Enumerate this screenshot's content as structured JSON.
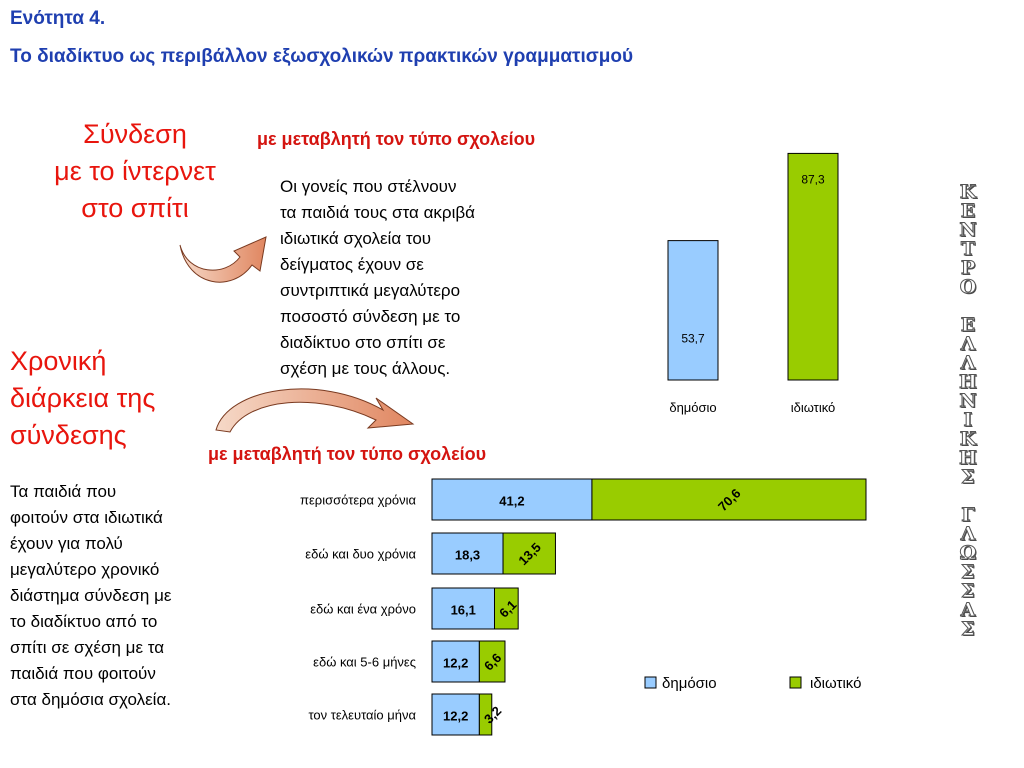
{
  "header": {
    "line1": "Ενότητα 4.",
    "line2": "Το διαδίκτυο ως περιβάλλον εξωσχολικών πρακτικών γραμματισμού"
  },
  "left_titles": {
    "connection": [
      "Σύνδεση",
      "με το ίντερνετ",
      "στο σπίτι"
    ],
    "duration": [
      "Χρονική",
      "διάρκεια της",
      "σύνδεσης"
    ]
  },
  "subheads": {
    "top": "με μεταβλητή τον τύπο σχολείου",
    "bottom": "με μεταβλητή τον τύπο σχολείου"
  },
  "paragraphs": {
    "top": [
      "Οι γονείς που στέλνουν",
      "τα παιδιά τους στα ακριβά",
      "ιδιωτικά σχολεία του",
      "δείγματος έχουν σε",
      "συντριπτικά μεγαλύτερο",
      "ποσοστό σύνδεση με το",
      "διαδίκτυο στο σπίτι σε",
      "σχέση με τους άλλους."
    ],
    "bottom": [
      "Τα παιδιά που",
      "φοιτούν στα ιδιωτικά",
      "έχουν για πολύ",
      "μεγαλύτερο χρονικό",
      "διάστημα σύνδεση με",
      "το διαδίκτυο από το",
      "σπίτι σε σχέση με τα",
      "παιδιά που φοιτούν",
      "στα δημόσια σχολεία."
    ]
  },
  "side_text": "ΚΕΝΤΡΟ ΕΛΛΗΝΙΚΗΣ ΓΛΩΣΣΑΣ",
  "colors": {
    "public": "#99ccff",
    "private": "#99cc00",
    "header": "#1f3fb0",
    "red": "#e8150d"
  },
  "chart_data": [
    {
      "type": "bar",
      "categories": [
        "δημόσιο",
        "ιδιωτικό"
      ],
      "values": [
        53.7,
        87.3
      ],
      "labels": [
        "53,7",
        "87,3"
      ],
      "ylim": [
        0,
        100
      ]
    },
    {
      "type": "bar",
      "orientation": "horizontal",
      "stacked": true,
      "categories": [
        "περισσότερα χρόνια",
        "εδώ και δυο χρόνια",
        "εδώ και ένα χρόνο",
        "εδώ και 5-6 μήνες",
        "τον τελευταίο μήνα"
      ],
      "series": [
        {
          "name": "δημόσιο",
          "values": [
            41.2,
            18.3,
            16.1,
            12.2,
            12.2
          ],
          "labels": [
            "41,2",
            "18,3",
            "16,1",
            "12,2",
            "12,2"
          ]
        },
        {
          "name": "ιδιωτικό",
          "values": [
            70.6,
            13.5,
            6.1,
            6.6,
            3.2
          ],
          "labels": [
            "70,6",
            "13,5",
            "6,1",
            "6,6",
            "3,2"
          ]
        }
      ],
      "legend_position": "bottom-right"
    }
  ]
}
